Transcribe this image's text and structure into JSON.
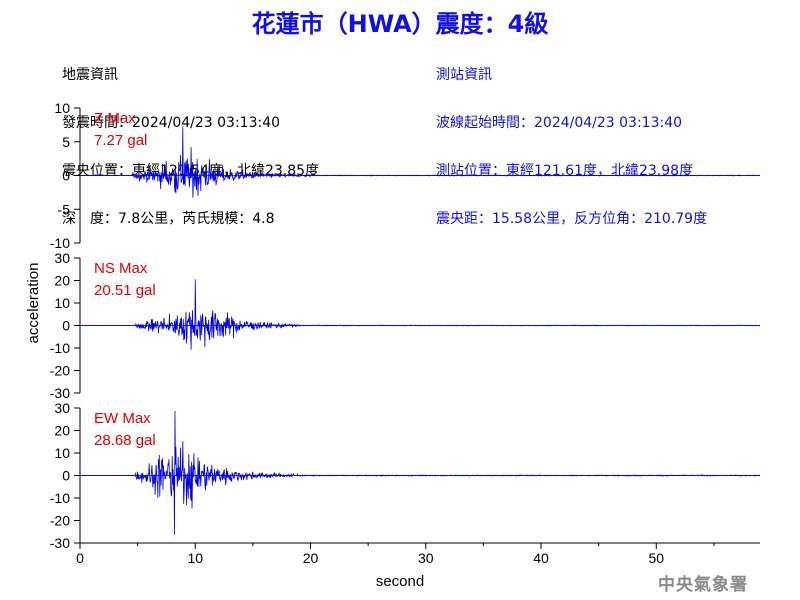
{
  "header": {
    "title": "花蓮市（HWA）震度：4級"
  },
  "quake_info": {
    "heading": "地震資訊",
    "origin_time": "發震時間：2024/04/23 03:13:40",
    "epicenter": "震央位置：東經121.54度，北緯23.85度",
    "depth_magnitude": "深　度：7.8公里，芮氏規模：4.8"
  },
  "station_info": {
    "heading": "測站資訊",
    "wave_start": "波線起始時間：2024/04/23 03:13:40",
    "location": "測站位置：東經121.61度，北緯23.98度",
    "distance_azimuth": "震央距：15.58公里，反方位角：210.79度"
  },
  "footer": {
    "agency": "中央氣象署"
  },
  "colors": {
    "title": "#1010e0",
    "station_text": "#1010e0",
    "trace": "#0000dd",
    "max_label": "#e00000",
    "axis": "#000000"
  },
  "chart_data": [
    {
      "type": "line",
      "component": "Z",
      "label_line1": "Z Max",
      "label_line2": "7.27 gal",
      "peak": 7.27,
      "ylim": [
        -10,
        10
      ],
      "yticks": [
        10,
        5,
        0,
        -5,
        -10
      ],
      "onset_s": 4.5,
      "peak_time_s": 8.9,
      "decay_end_s": 20
    },
    {
      "type": "line",
      "component": "NS",
      "label_line1": "NS Max",
      "label_line2": "20.51 gal",
      "peak": 20.51,
      "ylim": [
        -30,
        30
      ],
      "yticks": [
        30,
        20,
        10,
        0,
        -10,
        -20,
        -30
      ],
      "onset_s": 4.8,
      "peak_time_s": 10.0,
      "decay_end_s": 19
    },
    {
      "type": "line",
      "component": "EW",
      "label_line1": "EW Max",
      "label_line2": "28.68 gal",
      "peak": 28.68,
      "ylim": [
        -30,
        30
      ],
      "yticks": [
        30,
        20,
        10,
        0,
        -10,
        -20,
        -30
      ],
      "onset_s": 4.8,
      "peak_time_s": 8.2,
      "decay_end_s": 19
    }
  ],
  "x_axis": {
    "label": "second",
    "xlim": [
      0,
      59
    ],
    "ticks": [
      0,
      10,
      20,
      30,
      40,
      50
    ]
  },
  "y_axis": {
    "label": "acceleration"
  }
}
